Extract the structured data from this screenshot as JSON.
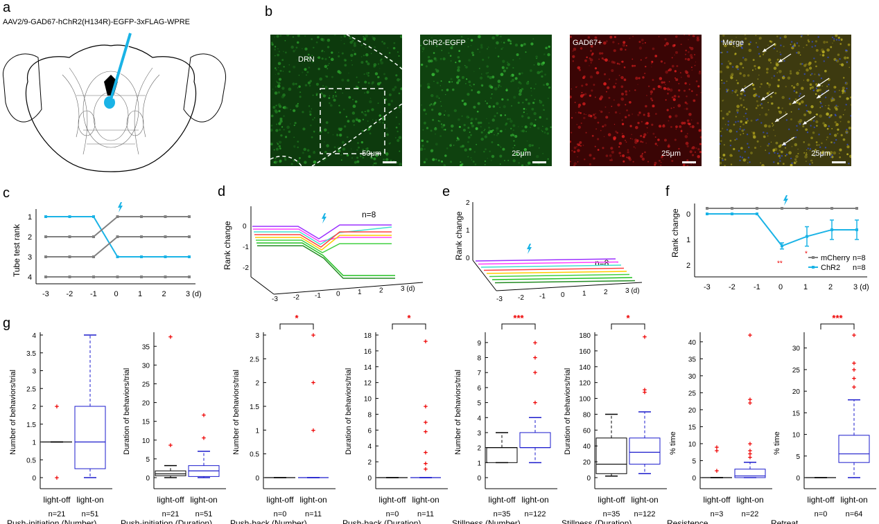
{
  "panels": {
    "a": {
      "letter": "a",
      "construct": "AAV2/9-GAD67-hChR2(H134R)-EGFP-3xFLAG-WPRE"
    },
    "b": {
      "letter": "b",
      "images": [
        {
          "label": "DRN",
          "scale": "50μm",
          "color": "#0d3a0d"
        },
        {
          "label": "ChR2-EGFP",
          "scale": "25μm",
          "color": "#0f420f"
        },
        {
          "label": "GAD67+",
          "scale": "25μm",
          "color": "#3a0505"
        },
        {
          "label": "Merge",
          "scale": "25μm",
          "color": "#3d3a10"
        }
      ]
    },
    "c": {
      "letter": "c",
      "ylabel": "Tube test rank",
      "yticks": [
        "1",
        "2",
        "3",
        "4"
      ],
      "xticks": [
        "-3",
        "-2",
        "-1",
        "0",
        "1",
        "2",
        "3 (d)"
      ]
    },
    "d": {
      "letter": "d",
      "ylabel": "Rank change",
      "n": "n=8",
      "yticks": [
        "0",
        "-1",
        "-2"
      ],
      "xticks": [
        "-3",
        "-2",
        "-1",
        "0",
        "1",
        "2",
        "3 (d)"
      ]
    },
    "e": {
      "letter": "e",
      "ylabel": "Rank change",
      "n": "n=8",
      "yticks": [
        "2",
        "1",
        "0"
      ],
      "xticks": [
        "-3",
        "-2",
        "-1",
        "0",
        "1",
        "2",
        "3 (d)"
      ]
    },
    "f": {
      "letter": "f",
      "ylabel": "Rank change",
      "legend": [
        "mCherry",
        "ChR2"
      ],
      "legend_n": [
        "n=8",
        "n=8"
      ],
      "sig": [
        "**",
        "*"
      ],
      "yticks": [
        "0",
        "1",
        "2"
      ],
      "xticks": [
        "-3",
        "-2",
        "-1",
        "0",
        "1",
        "2",
        "3 (d)"
      ]
    },
    "g": {
      "letter": "g"
    }
  },
  "chart_data": [
    {
      "panel": "c",
      "type": "line",
      "ylabel": "Tube test rank",
      "x": [
        -3,
        -2,
        -1,
        0,
        1,
        2,
        3
      ],
      "series": [
        {
          "color": "#1ab3e6",
          "values": [
            1,
            1,
            1,
            3,
            3,
            3,
            3
          ]
        },
        {
          "color": "#808080",
          "values": [
            2,
            2,
            2,
            1,
            1,
            1,
            1
          ]
        },
        {
          "color": "#808080",
          "values": [
            3,
            3,
            3,
            2,
            2,
            2,
            2
          ]
        },
        {
          "color": "#808080",
          "values": [
            4,
            4,
            4,
            4,
            4,
            4,
            4
          ]
        }
      ]
    },
    {
      "panel": "f",
      "type": "line",
      "ylabel": "Rank change",
      "x": [
        -3,
        -2,
        -1,
        0,
        1,
        2,
        3
      ],
      "series": [
        {
          "name": "mCherry",
          "color": "#808080",
          "values": [
            0,
            0,
            0,
            0,
            0,
            0,
            0
          ]
        },
        {
          "name": "ChR2",
          "color": "#1ab3e6",
          "values": [
            0,
            0,
            0,
            -1.25,
            -0.88,
            -0.62,
            -0.62
          ],
          "err": [
            0,
            0,
            0,
            0.12,
            0.38,
            0.38,
            0.38
          ]
        }
      ]
    },
    {
      "panel": "g1",
      "type": "box",
      "ylabel": "Number of behaviors/trial",
      "title": "Push-initiation (Number)",
      "ylim": [
        0,
        4
      ],
      "yticks": [
        "0",
        "0.5",
        "1",
        "1.5",
        "2",
        "2.5",
        "3",
        "3.5",
        "4"
      ],
      "groups": [
        {
          "name": "light-off",
          "n": "n=21",
          "q1": 1,
          "median": 1,
          "q3": 1,
          "wlo": 1,
          "whi": 1,
          "outliers": [
            2,
            0
          ]
        },
        {
          "name": "light-on",
          "n": "n=51",
          "q1": 0.25,
          "median": 1,
          "q3": 2,
          "wlo": 0,
          "whi": 4,
          "outliers": []
        }
      ],
      "sig": ""
    },
    {
      "panel": "g2",
      "type": "box",
      "ylabel": "Duration of behaviors/trial",
      "title": "Push-initiation (Duration)",
      "ylim": [
        0,
        38
      ],
      "yticks": [
        "0",
        "5",
        "10",
        "15",
        "20",
        "25",
        "30",
        "35"
      ],
      "groups": [
        {
          "name": "light-off",
          "n": "n=21",
          "q1": 0.5,
          "median": 1,
          "q3": 1.8,
          "wlo": 0,
          "whi": 3.2,
          "outliers": [
            37.5,
            8.7
          ]
        },
        {
          "name": "light-on",
          "n": "n=51",
          "q1": 0.3,
          "median": 1.8,
          "q3": 3.2,
          "wlo": 0,
          "whi": 7,
          "outliers": [
            16.7,
            10.6
          ]
        }
      ],
      "sig": ""
    },
    {
      "panel": "g3",
      "type": "box",
      "ylabel": "Number of behaviors/trial",
      "title": "Push-back (Number)",
      "ylim": [
        0,
        3
      ],
      "yticks": [
        "0",
        "0.5",
        "1",
        "1.5",
        "2",
        "2.5",
        "3"
      ],
      "groups": [
        {
          "name": "light-off",
          "n": "n=0",
          "q1": 0,
          "median": 0,
          "q3": 0,
          "wlo": 0,
          "whi": 0,
          "outliers": []
        },
        {
          "name": "light-on",
          "n": "n=11",
          "q1": 0,
          "median": 0,
          "q3": 0,
          "wlo": 0,
          "whi": 0,
          "outliers": [
            3,
            2,
            1
          ]
        }
      ],
      "sig": "*"
    },
    {
      "panel": "g4",
      "type": "box",
      "ylabel": "Duration of behaviors/trial",
      "title": "Push-back (Duration)",
      "ylim": [
        0,
        18
      ],
      "yticks": [
        "0",
        "2",
        "4",
        "6",
        "8",
        "10",
        "12",
        "14",
        "16",
        "18"
      ],
      "groups": [
        {
          "name": "light-off",
          "n": "n=0",
          "q1": 0,
          "median": 0,
          "q3": 0,
          "wlo": 0,
          "whi": 0,
          "outliers": []
        },
        {
          "name": "light-on",
          "n": "n=11",
          "q1": 0,
          "median": 0,
          "q3": 0,
          "wlo": 0,
          "whi": 0,
          "outliers": [
            17.2,
            9,
            7,
            5.8,
            3.2,
            1.8,
            1.1
          ]
        }
      ],
      "sig": "*"
    },
    {
      "panel": "g5",
      "type": "box",
      "ylabel": "Number of behaviors/trial",
      "title": "Stillness (Number)",
      "ylim": [
        0,
        9.5
      ],
      "yticks": [
        "0",
        "1",
        "2",
        "3",
        "4",
        "5",
        "6",
        "7",
        "8",
        "9"
      ],
      "groups": [
        {
          "name": "light-off",
          "n": "n=35",
          "q1": 1,
          "median": 2,
          "q3": 2,
          "wlo": 1,
          "whi": 3,
          "outliers": []
        },
        {
          "name": "light-on",
          "n": "n=122",
          "q1": 2,
          "median": 2,
          "q3": 3,
          "wlo": 1,
          "whi": 4,
          "outliers": [
            9,
            8,
            7,
            5
          ]
        }
      ],
      "sig": "***"
    },
    {
      "panel": "g6",
      "type": "box",
      "ylabel": "Duration of behaviors/trial",
      "title": "Stillness (Duration)",
      "ylim": [
        0,
        180
      ],
      "yticks": [
        "0",
        "20",
        "40",
        "60",
        "80",
        "100",
        "120",
        "140",
        "160",
        "180"
      ],
      "groups": [
        {
          "name": "light-off",
          "n": "n=35",
          "q1": 5,
          "median": 17,
          "q3": 50,
          "wlo": 2,
          "whi": 80,
          "outliers": []
        },
        {
          "name": "light-on",
          "n": "n=122",
          "q1": 17,
          "median": 32,
          "q3": 50,
          "wlo": 5,
          "whi": 83,
          "outliers": [
            178,
            111,
            108
          ]
        }
      ],
      "sig": "*"
    },
    {
      "panel": "g7",
      "type": "box",
      "ylabel": "% time",
      "title": "Resistence",
      "ylim": [
        0,
        42
      ],
      "yticks": [
        "0",
        "5",
        "10",
        "15",
        "20",
        "25",
        "30",
        "35",
        "40"
      ],
      "groups": [
        {
          "name": "light-off",
          "n": "n=3",
          "q1": 0,
          "median": 0,
          "q3": 0,
          "wlo": 0,
          "whi": 0,
          "outliers": [
            9,
            8,
            2
          ]
        },
        {
          "name": "light-on",
          "n": "n=22",
          "q1": 0,
          "median": 0.5,
          "q3": 2.5,
          "wlo": 0,
          "whi": 4.5,
          "outliers": [
            42,
            23,
            22,
            10,
            8,
            7,
            6
          ]
        }
      ],
      "sig": ""
    },
    {
      "panel": "g8",
      "type": "box",
      "ylabel": "% time",
      "title": "Retreat",
      "ylim": [
        0,
        33
      ],
      "yticks": [
        "0",
        "5",
        "10",
        "15",
        "20",
        "25",
        "30"
      ],
      "groups": [
        {
          "name": "light-off",
          "n": "n=0",
          "q1": 0,
          "median": 0,
          "q3": 0,
          "wlo": 0,
          "whi": 0,
          "outliers": []
        },
        {
          "name": "light-on",
          "n": "n=64",
          "q1": 3.5,
          "median": 5.5,
          "q3": 9.8,
          "wlo": 0,
          "whi": 18,
          "outliers": [
            33,
            26.5,
            25,
            23,
            21
          ]
        }
      ],
      "sig": "***"
    }
  ]
}
